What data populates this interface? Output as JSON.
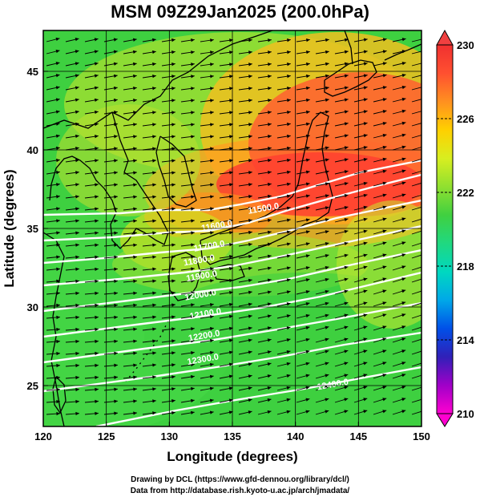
{
  "title": "MSM 09Z29Jan2025 (200.0hPa)",
  "xaxis": {
    "label": "Longitude (degrees)",
    "ticks": [
      120,
      125,
      130,
      135,
      140,
      145,
      150
    ],
    "range": [
      120,
      150
    ]
  },
  "yaxis": {
    "label": "Latitude  (degrees)",
    "ticks": [
      25,
      30,
      35,
      40,
      45
    ],
    "range": [
      22.4,
      47.6
    ]
  },
  "colorbar": {
    "ticks": [
      230,
      226,
      222,
      218,
      214,
      210
    ],
    "range": [
      210,
      230
    ],
    "colors": [
      "#ff00d0",
      "#a000c8",
      "#3020b8",
      "#0050e8",
      "#00a8e8",
      "#00d8c0",
      "#20d880",
      "#40d040",
      "#90e030",
      "#d8ee20",
      "#ffd000",
      "#ff9020",
      "#ff5030",
      "#f03030"
    ]
  },
  "contours": {
    "line_color": "#ffffff",
    "labels": [
      {
        "text": "11500.0",
        "lon": 137.5,
        "lat": 36.1
      },
      {
        "text": "11600.0",
        "lon": 133.8,
        "lat": 35.0
      },
      {
        "text": "11700.0",
        "lon": 133.2,
        "lat": 33.7
      },
      {
        "text": "11800.0",
        "lon": 132.4,
        "lat": 32.8
      },
      {
        "text": "11900.0",
        "lon": 132.6,
        "lat": 31.8
      },
      {
        "text": "12000.0",
        "lon": 132.5,
        "lat": 30.6
      },
      {
        "text": "12100.0",
        "lon": 132.9,
        "lat": 29.4
      },
      {
        "text": "12200.0",
        "lon": 132.8,
        "lat": 28.0
      },
      {
        "text": "12300.0",
        "lon": 132.7,
        "lat": 26.5
      },
      {
        "text": "12400.0",
        "lon": 143.0,
        "lat": 24.9
      }
    ]
  },
  "credits": [
    "Drawing by DCL (https://www.gfd-dennou.org/library/dcl/)",
    "Data from http://database.rish.kyoto-u.ac.jp/arch/jmadata/"
  ]
}
